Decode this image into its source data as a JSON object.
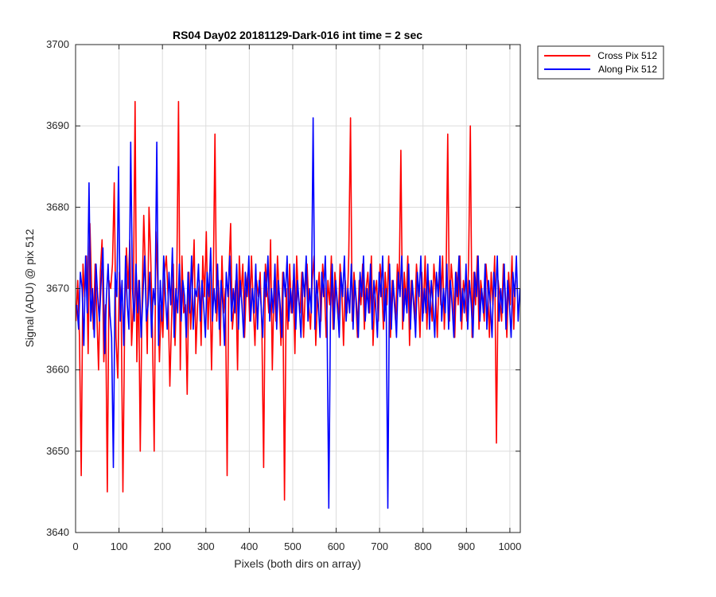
{
  "chart_data": {
    "type": "line",
    "title": "RS04 Day02 20181129-Dark-016 int time = 2 sec",
    "xlabel": "Pixels (both dirs on array)",
    "ylabel": "Signal (ADU) @ pix 512",
    "xlim": [
      0,
      1024
    ],
    "ylim": [
      3640,
      3700
    ],
    "xticks": [
      0,
      100,
      200,
      300,
      400,
      500,
      600,
      700,
      800,
      900,
      1000
    ],
    "yticks": [
      3640,
      3650,
      3660,
      3670,
      3680,
      3690,
      3700
    ],
    "grid": true,
    "legend_position": "outside-top-right",
    "colors": {
      "Cross Pix 512": "#ff0000",
      "Along Pix 512": "#0000ff"
    },
    "series": [
      {
        "name": "Cross Pix 512",
        "color": "#ff0000",
        "x_start": 1,
        "x_step": 4,
        "values": [
          3666,
          3671,
          3664,
          3647,
          3673,
          3669,
          3674,
          3662,
          3678,
          3670,
          3665,
          3673,
          3667,
          3660,
          3672,
          3676,
          3661,
          3668,
          3645,
          3671,
          3670,
          3673,
          3683,
          3664,
          3659,
          3672,
          3668,
          3645,
          3666,
          3675,
          3670,
          3676,
          3663,
          3668,
          3693,
          3661,
          3671,
          3650,
          3668,
          3679,
          3672,
          3662,
          3680,
          3674,
          3665,
          3650,
          3677,
          3671,
          3661,
          3668,
          3664,
          3672,
          3674,
          3669,
          3658,
          3666,
          3673,
          3663,
          3671,
          3693,
          3660,
          3674,
          3667,
          3668,
          3657,
          3672,
          3665,
          3670,
          3676,
          3662,
          3668,
          3671,
          3663,
          3674,
          3669,
          3677,
          3665,
          3672,
          3660,
          3670,
          3689,
          3666,
          3671,
          3663,
          3674,
          3667,
          3670,
          3647,
          3672,
          3678,
          3665,
          3668,
          3671,
          3660,
          3674,
          3669,
          3673,
          3664,
          3670,
          3672,
          3666,
          3674,
          3668,
          3663,
          3671,
          3669,
          3672,
          3665,
          3648,
          3673,
          3670,
          3667,
          3676,
          3660,
          3671,
          3666,
          3674,
          3669,
          3663,
          3672,
          3644,
          3670,
          3665,
          3673,
          3667,
          3671,
          3662,
          3674,
          3669,
          3667,
          3672,
          3664,
          3670,
          3673,
          3668,
          3665,
          3671,
          3674,
          3663,
          3669,
          3672,
          3666,
          3673,
          3670,
          3664,
          3671,
          3668,
          3674,
          3665,
          3672,
          3669,
          3666,
          3673,
          3670,
          3663,
          3671,
          3667,
          3674,
          3691,
          3666,
          3672,
          3669,
          3664,
          3671,
          3668,
          3673,
          3665,
          3670,
          3672,
          3667,
          3674,
          3663,
          3669,
          3671,
          3666,
          3673,
          3670,
          3665,
          3672,
          3668,
          3674,
          3664,
          3671,
          3669,
          3666,
          3673,
          3670,
          3687,
          3665,
          3672,
          3668,
          3674,
          3663,
          3671,
          3669,
          3666,
          3673,
          3670,
          3664,
          3672,
          3667,
          3674,
          3665,
          3671,
          3669,
          3666,
          3673,
          3670,
          3664,
          3672,
          3668,
          3674,
          3665,
          3671,
          3689,
          3666,
          3673,
          3670,
          3664,
          3672,
          3668,
          3674,
          3665,
          3671,
          3669,
          3666,
          3673,
          3690,
          3664,
          3672,
          3668,
          3674,
          3665,
          3671,
          3669,
          3666,
          3673,
          3670,
          3664,
          3672,
          3668,
          3674,
          3651,
          3671,
          3669,
          3666,
          3673,
          3670,
          3664,
          3672,
          3668,
          3674,
          3665,
          3671
        ]
      },
      {
        "name": "Along Pix 512",
        "color": "#0000ff",
        "x_start": 3,
        "x_step": 4,
        "values": [
          3668,
          3665,
          3672,
          3670,
          3663,
          3674,
          3667,
          3683,
          3666,
          3670,
          3664,
          3673,
          3669,
          3666,
          3671,
          3675,
          3662,
          3669,
          3673,
          3667,
          3664,
          3648,
          3672,
          3669,
          3685,
          3666,
          3671,
          3663,
          3674,
          3668,
          3665,
          3688,
          3670,
          3666,
          3673,
          3667,
          3671,
          3664,
          3669,
          3674,
          3666,
          3668,
          3672,
          3664,
          3670,
          3668,
          3688,
          3663,
          3671,
          3666,
          3674,
          3669,
          3665,
          3672,
          3668,
          3675,
          3664,
          3670,
          3667,
          3673,
          3666,
          3671,
          3669,
          3664,
          3672,
          3667,
          3674,
          3665,
          3670,
          3669,
          3673,
          3666,
          3671,
          3668,
          3664,
          3672,
          3669,
          3675,
          3666,
          3670,
          3667,
          3673,
          3665,
          3671,
          3668,
          3663,
          3672,
          3669,
          3674,
          3666,
          3670,
          3667,
          3673,
          3665,
          3671,
          3668,
          3664,
          3672,
          3669,
          3674,
          3666,
          3670,
          3667,
          3673,
          3665,
          3671,
          3668,
          3664,
          3672,
          3669,
          3674,
          3666,
          3670,
          3667,
          3673,
          3665,
          3671,
          3668,
          3664,
          3672,
          3669,
          3674,
          3666,
          3670,
          3667,
          3673,
          3665,
          3671,
          3668,
          3664,
          3672,
          3669,
          3674,
          3666,
          3670,
          3667,
          3691,
          3665,
          3671,
          3668,
          3664,
          3672,
          3669,
          3674,
          3666,
          3643,
          3667,
          3673,
          3665,
          3671,
          3668,
          3664,
          3672,
          3669,
          3674,
          3666,
          3670,
          3667,
          3673,
          3665,
          3671,
          3668,
          3664,
          3672,
          3669,
          3674,
          3666,
          3670,
          3667,
          3673,
          3665,
          3671,
          3668,
          3664,
          3672,
          3669,
          3674,
          3666,
          3670,
          3643,
          3673,
          3665,
          3671,
          3668,
          3664,
          3672,
          3669,
          3674,
          3666,
          3670,
          3667,
          3673,
          3665,
          3671,
          3668,
          3664,
          3672,
          3669,
          3674,
          3666,
          3670,
          3667,
          3673,
          3665,
          3671,
          3668,
          3664,
          3672,
          3669,
          3674,
          3666,
          3670,
          3667,
          3673,
          3665,
          3671,
          3668,
          3664,
          3672,
          3669,
          3674,
          3666,
          3670,
          3667,
          3673,
          3665,
          3671,
          3668,
          3664,
          3672,
          3669,
          3674,
          3666,
          3670,
          3667,
          3673,
          3665,
          3671,
          3668,
          3664,
          3672,
          3669,
          3674,
          3666,
          3670,
          3667,
          3673,
          3665,
          3671,
          3668,
          3664,
          3672,
          3669,
          3674,
          3666,
          3670
        ]
      }
    ]
  }
}
